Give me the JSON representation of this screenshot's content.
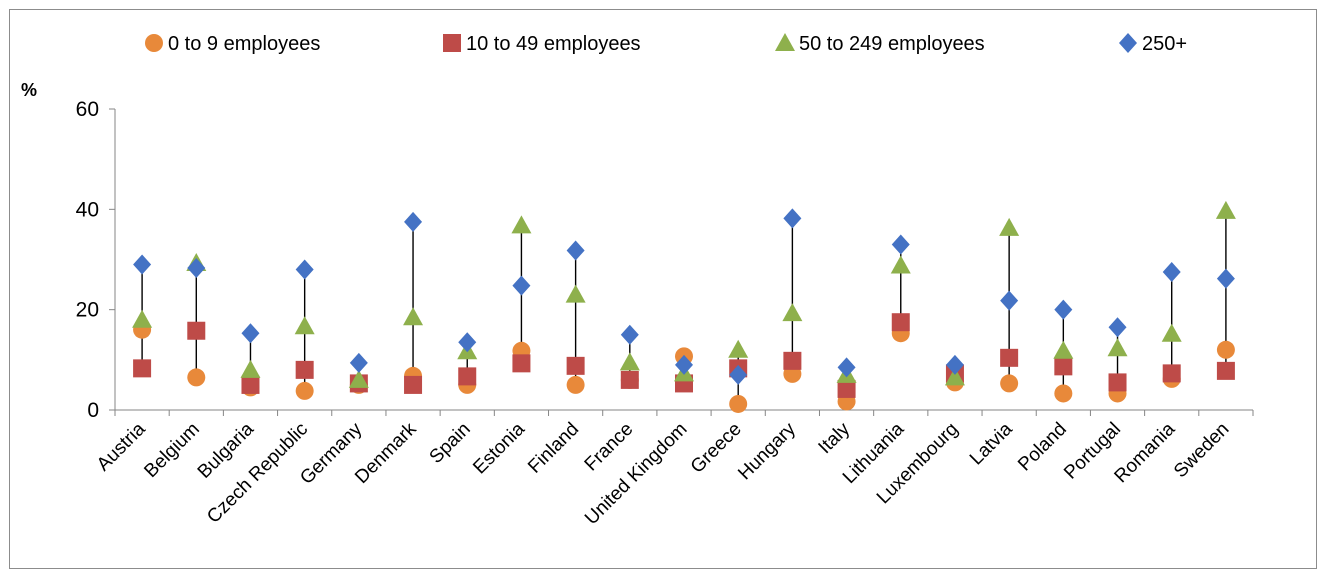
{
  "chart_data": {
    "type": "scatter",
    "ylabel": "%",
    "ylim": [
      0,
      60
    ],
    "yticks": [
      0,
      20,
      40,
      60
    ],
    "legend_position": "top",
    "categories": [
      "Austria",
      "Belgium",
      "Bulgaria",
      "Czech Republic",
      "Germany",
      "Denmark",
      "Spain",
      "Estonia",
      "Finland",
      "France",
      "United Kingdom",
      "Greece",
      "Hungary",
      "Italy",
      "Lithuania",
      "Luxembourg",
      "Latvia",
      "Poland",
      "Portugal",
      "Romania",
      "Sweden"
    ],
    "series": [
      {
        "name": "0 to 9 employees",
        "marker": "circle",
        "color": "#E8893A",
        "values": [
          16,
          6.5,
          4.5,
          3.8,
          5,
          6.8,
          5,
          11.8,
          5,
          6,
          10.7,
          1.2,
          7.2,
          1.7,
          15.3,
          5.5,
          5.3,
          3.3,
          3.3,
          6.2,
          12
        ]
      },
      {
        "name": "10 to 49 employees",
        "marker": "square",
        "color": "#BE4B48",
        "values": [
          8.3,
          15.8,
          5,
          8,
          5.3,
          5,
          6.7,
          9.3,
          8.8,
          6,
          5.3,
          8.3,
          9.8,
          4.2,
          17.5,
          7.3,
          10.4,
          8.7,
          5.5,
          7.3,
          7.8
        ]
      },
      {
        "name": "50 to 249 employees",
        "marker": "triangle",
        "color": "#8EB04C",
        "values": [
          18,
          29.3,
          8,
          16.7,
          6,
          18.5,
          11.7,
          36.8,
          23,
          9.5,
          7.3,
          12,
          19.3,
          7,
          28.8,
          6.5,
          36.3,
          11.8,
          12.3,
          15.2,
          39.7
        ]
      },
      {
        "name": "250+",
        "marker": "diamond",
        "color": "#4472C4",
        "values": [
          29,
          28.3,
          15.3,
          28,
          9.4,
          37.5,
          13.5,
          24.8,
          31.8,
          15,
          9,
          7,
          38.2,
          8.5,
          33,
          9,
          21.8,
          20,
          16.5,
          27.5,
          26.2
        ]
      }
    ]
  }
}
